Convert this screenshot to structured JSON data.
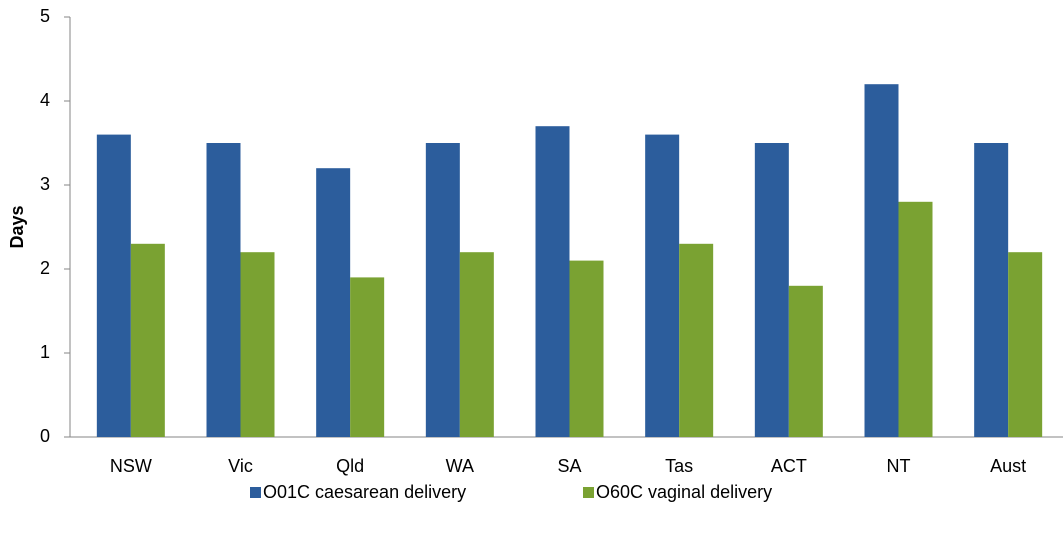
{
  "chart_data": {
    "type": "bar",
    "y_label": "Days",
    "categories": [
      "NSW",
      "Vic",
      "Qld",
      "WA",
      "SA",
      "Tas",
      "ACT",
      "NT",
      "Aust"
    ],
    "series": [
      {
        "name": "O01C caesarean delivery",
        "color": "#2c5d9c",
        "values": [
          3.6,
          3.5,
          3.2,
          3.5,
          3.7,
          3.6,
          3.5,
          4.2,
          3.5
        ]
      },
      {
        "name": "O60C vaginal delivery",
        "color": "#7aa232",
        "values": [
          2.3,
          2.2,
          1.9,
          2.2,
          2.1,
          2.3,
          1.8,
          2.8,
          2.2
        ]
      }
    ],
    "ylim": [
      0,
      5
    ],
    "yticks": [
      0,
      1,
      2,
      3,
      4,
      5
    ],
    "grid": false,
    "legend": "bottom"
  }
}
